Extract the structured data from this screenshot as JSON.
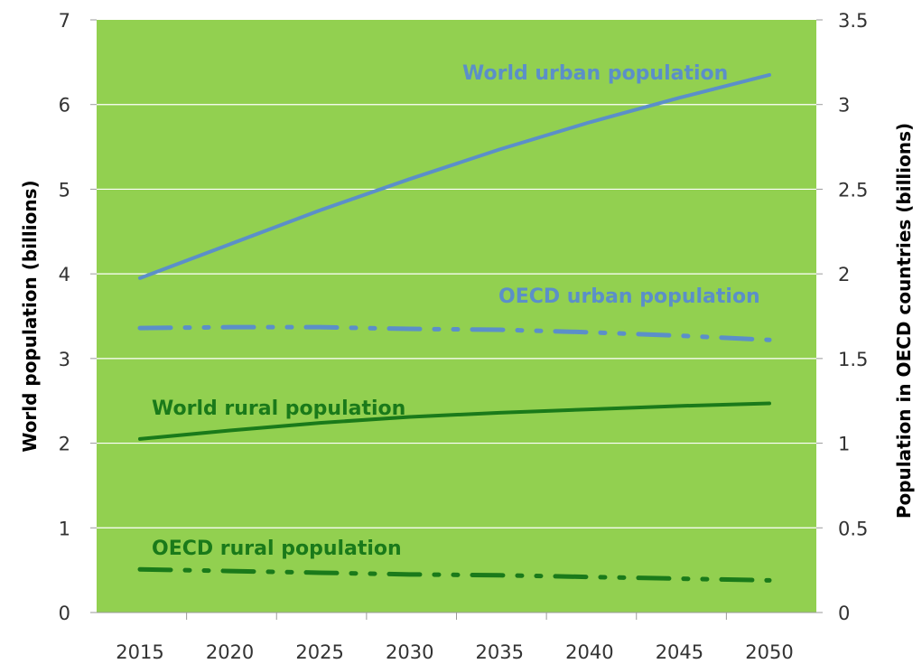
{
  "chart_data": {
    "type": "line",
    "title": "",
    "xlabel": "",
    "ylabel": "World population (billions)",
    "y2label": "Population in OECD countries (billions)",
    "x": [
      "2015",
      "2020",
      "2025",
      "2030",
      "2035",
      "2040",
      "2045",
      "2050"
    ],
    "ylim": [
      0,
      7
    ],
    "y2lim": [
      0,
      3.5
    ],
    "yticks": [
      "0",
      "1",
      "2",
      "3",
      "4",
      "5",
      "6",
      "7"
    ],
    "y2ticks": [
      "0",
      "0.5",
      "1",
      "1.5",
      "2",
      "2.5",
      "3",
      "3.5"
    ],
    "grid": true,
    "legend": "inline labels",
    "plot_background": "#92d050",
    "series": [
      {
        "name": "World urban population",
        "axis": "left",
        "style": "solid",
        "color": "#5b8fc9",
        "values": [
          3.95,
          4.35,
          4.75,
          5.12,
          5.47,
          5.79,
          6.08,
          6.35
        ]
      },
      {
        "name": "OECD urban population",
        "axis": "left",
        "style": "dash-dot",
        "color": "#5b8fc9",
        "values": [
          3.36,
          3.37,
          3.37,
          3.35,
          3.34,
          3.31,
          3.27,
          3.22
        ]
      },
      {
        "name": "World rural population",
        "axis": "left",
        "style": "solid",
        "color": "#1a7a1a",
        "values": [
          2.05,
          2.15,
          2.24,
          2.31,
          2.36,
          2.4,
          2.44,
          2.47
        ]
      },
      {
        "name": "OECD rural population",
        "axis": "left",
        "style": "dash-dot",
        "color": "#1a7a1a",
        "values": [
          0.51,
          0.49,
          0.47,
          0.45,
          0.44,
          0.42,
          0.4,
          0.38
        ]
      }
    ]
  }
}
